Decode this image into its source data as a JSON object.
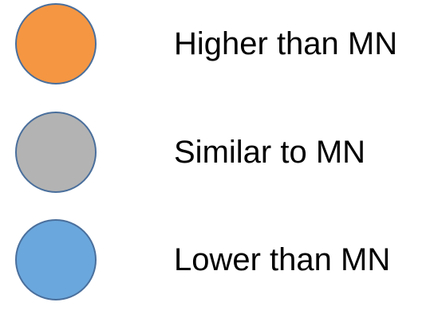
{
  "legend": {
    "items": [
      {
        "label": "Higher than MN",
        "color": "#f59642"
      },
      {
        "label": "Similar to MN",
        "color": "#b3b3b3"
      },
      {
        "label": "Lower than MN",
        "color": "#6aa7dc"
      }
    ],
    "border_color": "#4a6f9c"
  }
}
